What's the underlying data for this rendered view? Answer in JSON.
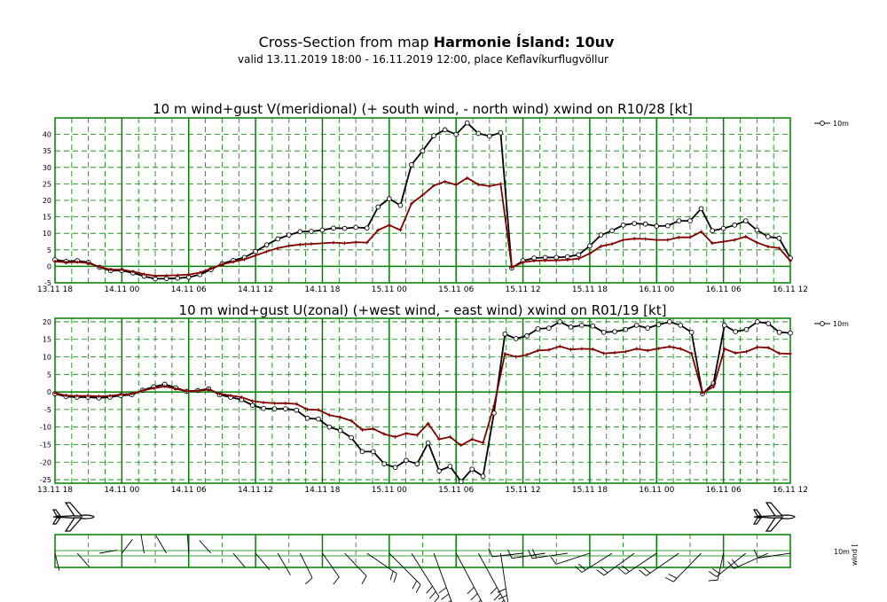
{
  "header": {
    "title_prefix": "Cross-Section from map ",
    "title_bold": "Harmonie Ísland: 10uv",
    "subtitle": "valid 13.11.2019 18:00 - 16.11.2019 12:00, place Keflavíkurflugvöllur"
  },
  "colors": {
    "grid": "#008000",
    "wind": "#000000",
    "gust": "#800000"
  },
  "icons": [
    "airplane-icon",
    "airplane-icon"
  ],
  "chart_data": [
    {
      "type": "line",
      "title": "10 m wind+gust V(meridional) (+ south wind, - north wind) xwind on R10/28 [kt]",
      "x_ticks": [
        "13.11 18",
        "14.11 00",
        "14.11 06",
        "14.11 12",
        "14.11 18",
        "15.11 00",
        "15.11 06",
        "15.11 12",
        "15.11 18",
        "16.11 00",
        "16.11 06",
        "16.11 12"
      ],
      "y_ticks": [
        "-5",
        "0",
        "5",
        "10",
        "15",
        "20",
        "25",
        "30",
        "35",
        "40"
      ],
      "ylim": [
        -5,
        45
      ],
      "legend": "10m",
      "series": [
        {
          "name": "10m",
          "role": "gust",
          "marker": "circle",
          "values": [
            2,
            1.5,
            1.7,
            1.2,
            -0.3,
            -1.3,
            -1.3,
            -2,
            -3,
            -3.8,
            -3.7,
            -3.6,
            -3.3,
            -2.5,
            -1,
            0.8,
            1.8,
            2.7,
            4.5,
            6.5,
            8.3,
            9.5,
            10.5,
            10.6,
            11,
            11.6,
            11.5,
            11.8,
            11.6,
            18,
            20.5,
            18.5,
            30.8,
            35,
            39.6,
            41.4,
            40,
            43.5,
            40.3,
            39.5,
            40.5,
            -0.5,
            1.7,
            2.5,
            2.7,
            2.7,
            2.9,
            3.5,
            6.2,
            9.5,
            10.8,
            12.5,
            13,
            12.8,
            12.2,
            12.3,
            13.8,
            13.8,
            17.5,
            10.8,
            11.5,
            12.5,
            13.8,
            11,
            9,
            8.5,
            2.5
          ]
        },
        {
          "name": "",
          "role": "wind",
          "marker": "plus",
          "values": [
            1.5,
            1.2,
            1.3,
            1,
            -0.2,
            -1,
            -1,
            -1.6,
            -2.4,
            -2.9,
            -2.8,
            -2.7,
            -2.5,
            -1.9,
            -0.7,
            0.6,
            1.4,
            2.1,
            3.3,
            4.5,
            5.5,
            6.2,
            6.6,
            6.8,
            7,
            7.2,
            7,
            7.3,
            7.2,
            11,
            12.5,
            11,
            19,
            21.6,
            24.5,
            25.7,
            24.7,
            26.8,
            24.8,
            24.3,
            25,
            -0.3,
            1.2,
            1.7,
            1.8,
            1.8,
            2,
            2.3,
            3.9,
            6.1,
            6.8,
            8,
            8.4,
            8.3,
            8,
            8,
            8.8,
            8.8,
            10.5,
            7,
            7.5,
            8,
            9,
            7.2,
            6,
            5.5,
            1.7
          ]
        }
      ]
    },
    {
      "type": "line",
      "title": "10 m wind+gust U(zonal) (+west wind, - east wind) xwind on R01/19 [kt]",
      "x_ticks": [
        "13.11 18",
        "14.11 00",
        "14.11 06",
        "14.11 12",
        "14.11 18",
        "15.11 00",
        "15.11 06",
        "15.11 12",
        "15.11 18",
        "16.11 00",
        "16.11 06",
        "16.11 12"
      ],
      "y_ticks": [
        "-25",
        "-20",
        "-15",
        "-10",
        "-5",
        "0",
        "5",
        "10",
        "15",
        "20"
      ],
      "ylim": [
        -26,
        21
      ],
      "legend": "10m",
      "series": [
        {
          "name": "10m",
          "role": "gust",
          "marker": "circle",
          "values": [
            -0.5,
            -1.3,
            -1.5,
            -1.5,
            -1.7,
            -1.5,
            -1,
            -0.8,
            0.5,
            1.5,
            2.2,
            1.2,
            0.2,
            0.4,
            0.9,
            -0.8,
            -1.5,
            -2.2,
            -3.8,
            -4.7,
            -4.8,
            -4.8,
            -5.2,
            -7.5,
            -7.7,
            -10,
            -11,
            -13,
            -17,
            -17,
            -20.5,
            -21.5,
            -19.5,
            -20.5,
            -14.5,
            -22.5,
            -21.2,
            -25.5,
            -22,
            -24,
            -6,
            16.5,
            15.2,
            16,
            18,
            18.2,
            20,
            18.5,
            19,
            18.8,
            17,
            17.2,
            17.8,
            19,
            18.2,
            19.2,
            20,
            19,
            17,
            -0.5,
            2.5,
            19,
            17.2,
            17.8,
            20,
            19.5,
            17,
            16.8
          ]
        },
        {
          "name": "",
          "role": "wind",
          "marker": "plus",
          "values": [
            -0.3,
            -1,
            -1.1,
            -1.1,
            -1.2,
            -1.1,
            -0.7,
            -0.5,
            0.4,
            1.1,
            1.6,
            0.9,
            0.2,
            0.3,
            0.7,
            -0.5,
            -1,
            -1.5,
            -2.6,
            -3,
            -3.2,
            -3.2,
            -3.4,
            -5,
            -5.1,
            -6.6,
            -7.2,
            -8.2,
            -10.8,
            -10.5,
            -12,
            -12.8,
            -11.8,
            -12.3,
            -9,
            -13.5,
            -12.8,
            -15.2,
            -13.5,
            -14.5,
            -4,
            10.9,
            10,
            10.6,
            11.8,
            12,
            13,
            12.1,
            12.3,
            12.2,
            11,
            11.2,
            11.5,
            12.3,
            11.8,
            12.4,
            12.9,
            12.3,
            11,
            -0.3,
            1.5,
            12.3,
            11.1,
            11.5,
            12.8,
            12.6,
            11,
            10.9
          ]
        }
      ]
    }
  ],
  "wind_strip": {
    "legend_top": "10m",
    "legend_rotated": "wind [",
    "rows": 3
  }
}
